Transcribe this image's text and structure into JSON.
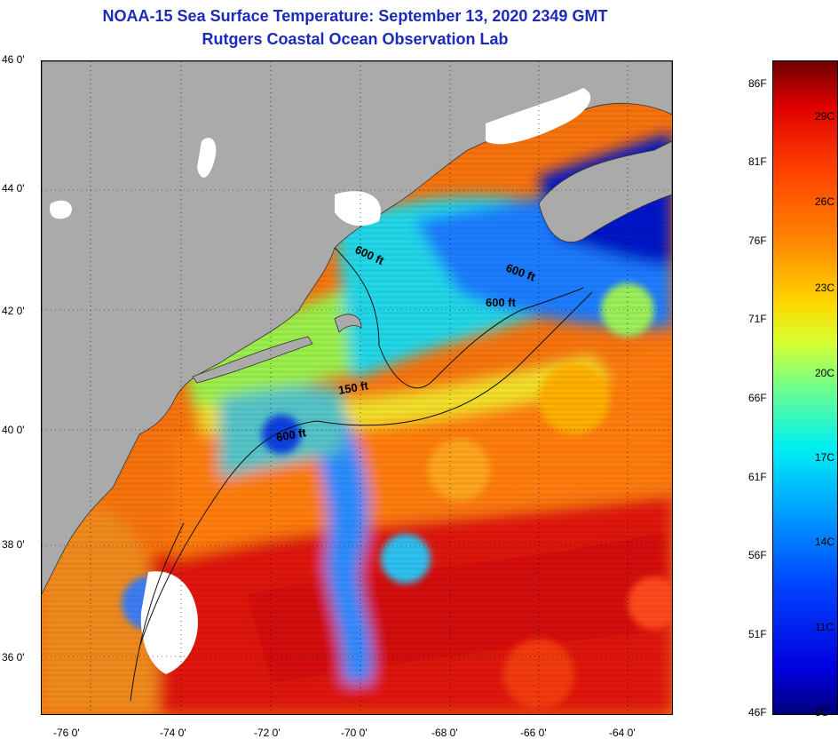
{
  "title": {
    "line1": "NOAA-15 Sea Surface Temperature:  September 13, 2020 2349 GMT",
    "line2": "Rutgers Coastal Ocean Observation Lab"
  },
  "axes": {
    "lat_labels": [
      "46 0'",
      "44 0'",
      "42 0'",
      "40 0'",
      "38 0'",
      "36 0'"
    ],
    "lon_labels": [
      "-76 0'",
      "-74 0'",
      "-72 0'",
      "-70 0'",
      "-68 0'",
      "-66 0'",
      "-64 0'"
    ]
  },
  "isobaths": {
    "a": "600 ft",
    "b": "600 ft",
    "c": "600 ft",
    "d": "150 ft",
    "e": "600 ft"
  },
  "colorbar": {
    "fahrenheit": [
      "86F",
      "81F",
      "76F",
      "71F",
      "66F",
      "61F",
      "56F",
      "51F",
      "46F"
    ],
    "celsius": [
      "29C",
      "26C",
      "23C",
      "20C",
      "17C",
      "14C",
      "11C",
      "8C"
    ]
  },
  "colors": {
    "land": "#aaaaaa",
    "cloud": "#ffffff",
    "title": "#1c2bb8"
  }
}
